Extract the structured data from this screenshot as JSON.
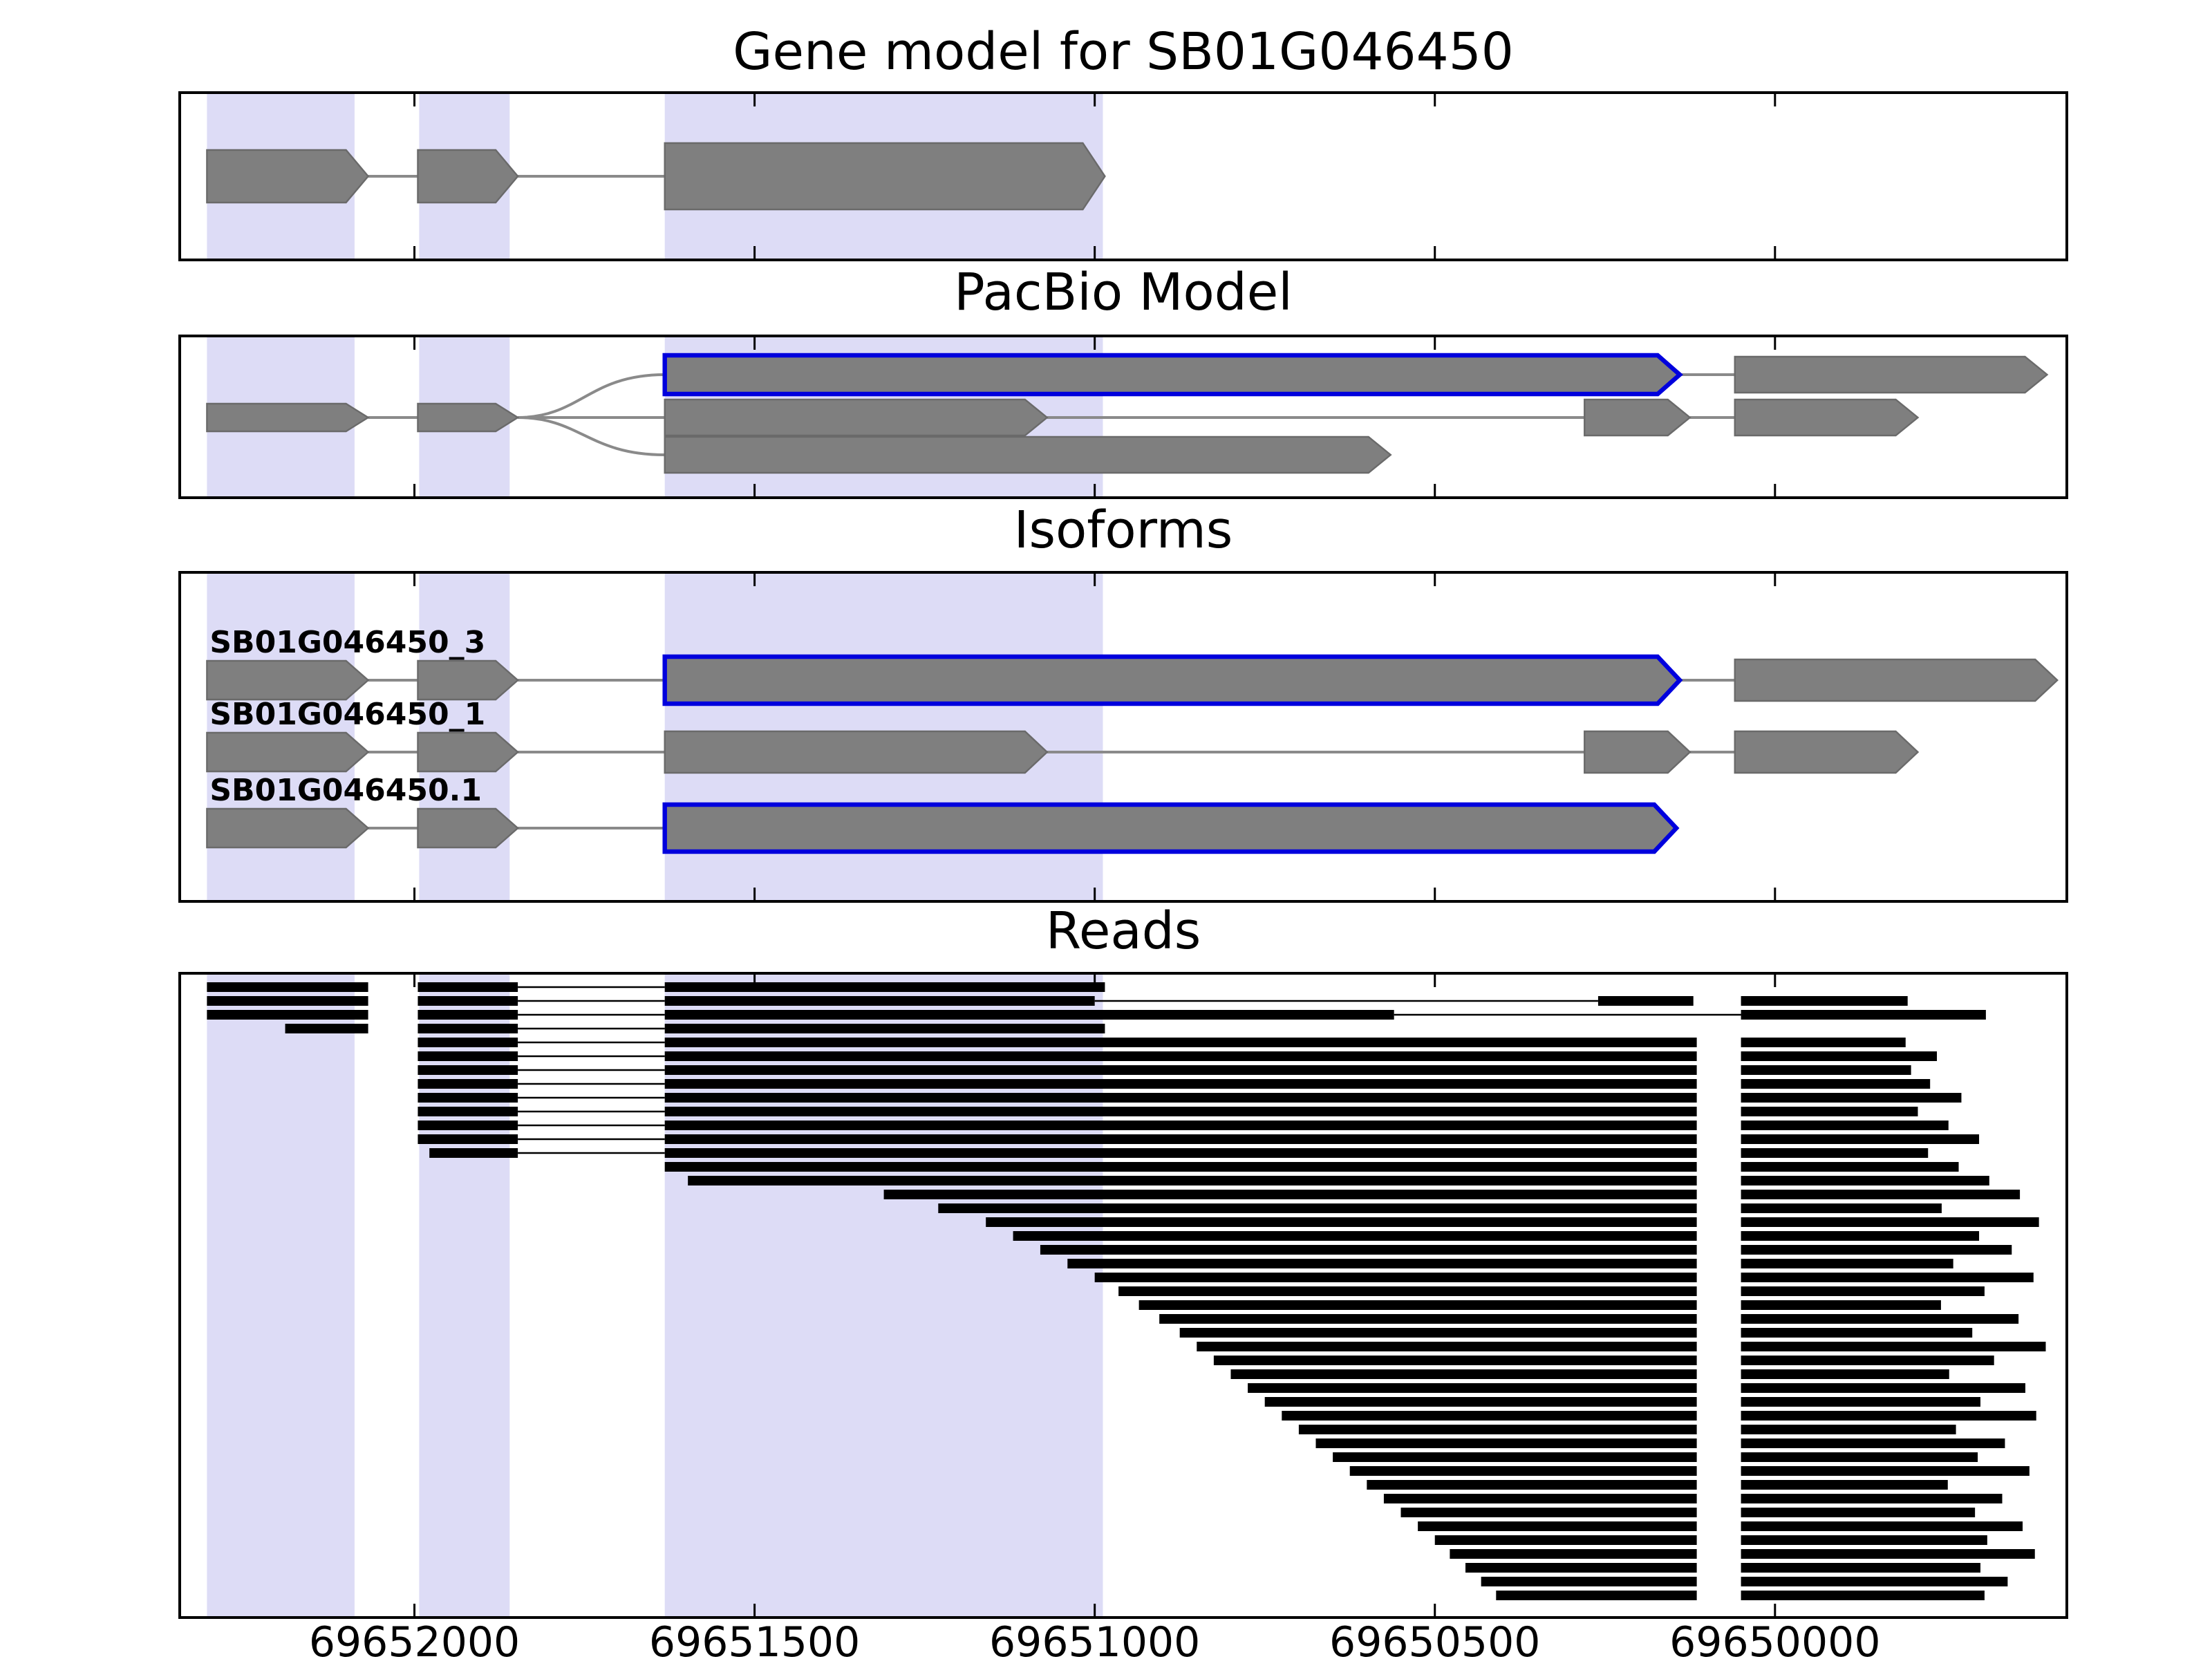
{
  "chart_data": {
    "type": "genome-tracks",
    "x_axis": {
      "left_value": 69652345,
      "right_value": 69649571,
      "ticks": [
        69652000,
        69651500,
        69651000,
        69650500,
        69650000
      ],
      "tick_labels": [
        "69652000",
        "69651500",
        "69651000",
        "69650500",
        "69650000"
      ],
      "direction": "decreasing-left-to-right"
    },
    "highlight_regions": [
      [
        69652305,
        69652088
      ],
      [
        69651993,
        69651860
      ],
      [
        69651632,
        69650988
      ]
    ],
    "colors": {
      "highlight": "#dddcf6",
      "exon_fill": "#7f7f7f",
      "exon_edge": "#6a6a6a",
      "blue_outline": "#0000dd",
      "intron_line": "#8a8a8a",
      "read": "#000000",
      "frame": "#000000",
      "background": "#ffffff"
    },
    "panels": [
      {
        "title": "Gene model for SB01G046450",
        "kind": "gene_model",
        "transcript": {
          "exons": [
            [
              69652305,
              69652068
            ],
            [
              69651995,
              69651848
            ],
            [
              69651632,
              69650985
            ]
          ]
        }
      },
      {
        "title": "PacBio Model",
        "kind": "pacbio",
        "shared_exons": [
          [
            69652305,
            69652068
          ],
          [
            69651995,
            69651848
          ]
        ],
        "branch_point": 69651848,
        "branches": [
          {
            "row": 0,
            "exons": [
              [
                69651632,
                69650140
              ],
              [
                69650059,
                69649600
              ]
            ],
            "blue_exon_indices": [
              0
            ]
          },
          {
            "row": 1,
            "exons": [
              [
                69651632,
                69651070
              ],
              [
                69650280,
                69650125
              ],
              [
                69650059,
                69649790
              ]
            ],
            "blue_exon_indices": []
          },
          {
            "row": 2,
            "exons": [
              [
                69651632,
                69650565
              ]
            ],
            "blue_exon_indices": []
          }
        ]
      },
      {
        "title": "Isoforms",
        "kind": "isoforms",
        "isoforms": [
          {
            "label": "SB01G046450_3",
            "exons": [
              [
                69652305,
                69652068
              ],
              [
                69651995,
                69651848
              ],
              [
                69651632,
                69650140
              ],
              [
                69650059,
                69649585
              ]
            ],
            "blue_exon_indices": [
              2
            ]
          },
          {
            "label": "SB01G046450_1",
            "exons": [
              [
                69652305,
                69652068
              ],
              [
                69651995,
                69651848
              ],
              [
                69651632,
                69651070
              ],
              [
                69650280,
                69650125
              ],
              [
                69650059,
                69649790
              ]
            ],
            "blue_exon_indices": []
          },
          {
            "label": "SB01G046450.1",
            "exons": [
              [
                69652305,
                69652068
              ],
              [
                69651995,
                69651848
              ],
              [
                69651632,
                69650145
              ]
            ],
            "blue_exon_indices": [
              2
            ]
          }
        ]
      },
      {
        "title": "Reads",
        "kind": "reads",
        "reads": [
          [
            [
              69652305,
              69652068
            ],
            [
              69651995,
              69651848
            ],
            [
              69651632,
              69650985
            ]
          ],
          [
            [
              69652305,
              69652068
            ],
            [
              69651995,
              69651848
            ],
            [
              69651632,
              69651000
            ],
            [
              69650260,
              69650120
            ],
            [
              69650050,
              69649805
            ]
          ],
          [
            [
              69652305,
              69652068
            ],
            [
              69651995,
              69651848
            ],
            [
              69651632,
              69650560
            ],
            [
              69650050,
              69649690
            ]
          ],
          [
            [
              69652190,
              69652068
            ],
            [
              69651995,
              69651848
            ],
            [
              69651632,
              69650985
            ]
          ],
          [
            [
              69651995,
              69651848
            ],
            [
              69651632,
              69650115
            ],
            [
              69650050,
              69649808
            ]
          ],
          [
            [
              69651995,
              69651848
            ],
            [
              69651632,
              69650115
            ],
            [
              69650050,
              69649762
            ]
          ],
          [
            [
              69651995,
              69651848
            ],
            [
              69651632,
              69650115
            ],
            [
              69650050,
              69649800
            ]
          ],
          [
            [
              69651995,
              69651848
            ],
            [
              69651632,
              69650115
            ],
            [
              69650050,
              69649772
            ]
          ],
          [
            [
              69651995,
              69651848
            ],
            [
              69651632,
              69650115
            ],
            [
              69650050,
              69649726
            ]
          ],
          [
            [
              69651995,
              69651848
            ],
            [
              69651632,
              69650115
            ],
            [
              69650050,
              69649790
            ]
          ],
          [
            [
              69651995,
              69651848
            ],
            [
              69651632,
              69650115
            ],
            [
              69650050,
              69649745
            ]
          ],
          [
            [
              69651995,
              69651848
            ],
            [
              69651632,
              69650115
            ],
            [
              69650050,
              69649700
            ]
          ],
          [
            [
              69651978,
              69651848
            ],
            [
              69651632,
              69650115
            ],
            [
              69650050,
              69649775
            ]
          ],
          [
            [
              69651632,
              69650115
            ],
            [
              69650050,
              69649730
            ]
          ],
          [
            [
              69651598,
              69650115
            ],
            [
              69650050,
              69649685
            ]
          ],
          [
            [
              69651310,
              69650115
            ],
            [
              69650050,
              69649640
            ]
          ],
          [
            [
              69651230,
              69650115
            ],
            [
              69650050,
              69649755
            ]
          ],
          [
            [
              69651160,
              69650115
            ],
            [
              69650050,
              69649612
            ]
          ],
          [
            [
              69651120,
              69650115
            ],
            [
              69650050,
              69649700
            ]
          ],
          [
            [
              69651080,
              69650115
            ],
            [
              69650050,
              69649652
            ]
          ],
          [
            [
              69651040,
              69650115
            ],
            [
              69650050,
              69649738
            ]
          ],
          [
            [
              69651000,
              69650115
            ],
            [
              69650050,
              69649620
            ]
          ],
          [
            [
              69650965,
              69650115
            ],
            [
              69650050,
              69649692
            ]
          ],
          [
            [
              69650935,
              69650115
            ],
            [
              69650050,
              69649756
            ]
          ],
          [
            [
              69650905,
              69650115
            ],
            [
              69650050,
              69649642
            ]
          ],
          [
            [
              69650875,
              69650115
            ],
            [
              69650050,
              69649710
            ]
          ],
          [
            [
              69650850,
              69650115
            ],
            [
              69650050,
              69649602
            ]
          ],
          [
            [
              69650825,
              69650115
            ],
            [
              69650050,
              69649678
            ]
          ],
          [
            [
              69650800,
              69650115
            ],
            [
              69650050,
              69649744
            ]
          ],
          [
            [
              69650775,
              69650115
            ],
            [
              69650050,
              69649632
            ]
          ],
          [
            [
              69650750,
              69650115
            ],
            [
              69650050,
              69649698
            ]
          ],
          [
            [
              69650725,
              69650115
            ],
            [
              69650050,
              69649616
            ]
          ],
          [
            [
              69650700,
              69650115
            ],
            [
              69650050,
              69649734
            ]
          ],
          [
            [
              69650675,
              69650115
            ],
            [
              69650050,
              69649662
            ]
          ],
          [
            [
              69650650,
              69650115
            ],
            [
              69650050,
              69649702
            ]
          ],
          [
            [
              69650625,
              69650115
            ],
            [
              69650050,
              69649626
            ]
          ],
          [
            [
              69650600,
              69650115
            ],
            [
              69650050,
              69649746
            ]
          ],
          [
            [
              69650575,
              69650115
            ],
            [
              69650050,
              69649666
            ]
          ],
          [
            [
              69650550,
              69650115
            ],
            [
              69650050,
              69649706
            ]
          ],
          [
            [
              69650525,
              69650115
            ],
            [
              69650050,
              69649636
            ]
          ],
          [
            [
              69650500,
              69650115
            ],
            [
              69650050,
              69649688
            ]
          ],
          [
            [
              69650478,
              69650115
            ],
            [
              69650050,
              69649618
            ]
          ],
          [
            [
              69650455,
              69650115
            ],
            [
              69650050,
              69649698
            ]
          ],
          [
            [
              69650432,
              69650115
            ],
            [
              69650050,
              69649658
            ]
          ],
          [
            [
              69650410,
              69650115
            ],
            [
              69650050,
              69649692
            ]
          ]
        ]
      }
    ]
  }
}
